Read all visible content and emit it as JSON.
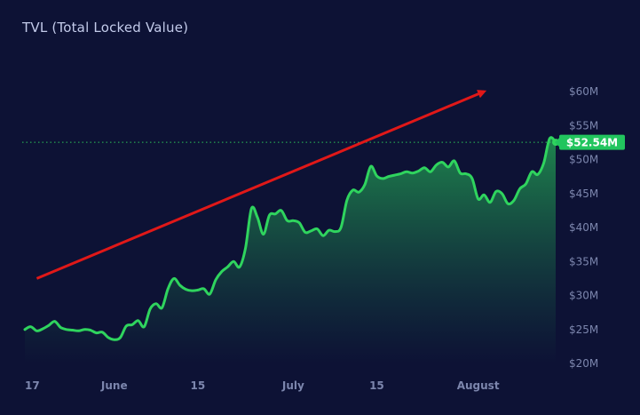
{
  "header": {
    "title": "TVL (Total Locked Value)"
  },
  "colors": {
    "background": "#0d1235",
    "line": "#2fd45e",
    "area_top": "#1f8b4f",
    "area_bottom": "#0d1235",
    "arrow": "#e01818",
    "badge": "#22c55e",
    "tick": "#7c86ad",
    "title": "#c3cbea"
  },
  "chart_data": {
    "type": "area",
    "title": "TVL (Total Locked Value)",
    "xlabel": "",
    "ylabel": "",
    "ylim": [
      20,
      60
    ],
    "y_unit": "$M",
    "grid": false,
    "y_ticks": [
      {
        "value": 60,
        "label": "$60M"
      },
      {
        "value": 55,
        "label": "$55M"
      },
      {
        "value": 50,
        "label": "$50M"
      },
      {
        "value": 45,
        "label": "$45M"
      },
      {
        "value": 40,
        "label": "$40M"
      },
      {
        "value": 35,
        "label": "$35M"
      },
      {
        "value": 30,
        "label": "$30M"
      },
      {
        "value": 25,
        "label": "$25M"
      },
      {
        "value": 20,
        "label": "$20M"
      }
    ],
    "x_ticks": [
      {
        "day": 0,
        "label": "17"
      },
      {
        "day": 15,
        "label": "June"
      },
      {
        "day": 29,
        "label": "15"
      },
      {
        "day": 45,
        "label": "July"
      },
      {
        "day": 59,
        "label": "15"
      },
      {
        "day": 76,
        "label": "August"
      }
    ],
    "x_range": [
      0,
      89
    ],
    "current_value": 52.54,
    "current_label": "$52.54M",
    "trend_arrow": {
      "from": {
        "day": 2,
        "value": 32.5
      },
      "to": {
        "day": 77,
        "value": 60.0
      }
    },
    "series": [
      {
        "name": "TVL",
        "points": [
          [
            0,
            25.0
          ],
          [
            1,
            25.4
          ],
          [
            2,
            24.8
          ],
          [
            3,
            25.1
          ],
          [
            4,
            25.6
          ],
          [
            5,
            26.2
          ],
          [
            6,
            25.3
          ],
          [
            7,
            25.0
          ],
          [
            8,
            24.9
          ],
          [
            9,
            24.8
          ],
          [
            10,
            25.0
          ],
          [
            11,
            24.9
          ],
          [
            12,
            24.5
          ],
          [
            13,
            24.6
          ],
          [
            14,
            23.8
          ],
          [
            15,
            23.5
          ],
          [
            16,
            23.8
          ],
          [
            17,
            25.5
          ],
          [
            18,
            25.7
          ],
          [
            19,
            26.3
          ],
          [
            20,
            25.4
          ],
          [
            21,
            28.0
          ],
          [
            22,
            28.8
          ],
          [
            23,
            28.2
          ],
          [
            24,
            31.0
          ],
          [
            25,
            32.5
          ],
          [
            26,
            31.5
          ],
          [
            27,
            30.9
          ],
          [
            28,
            30.7
          ],
          [
            29,
            30.8
          ],
          [
            30,
            31.0
          ],
          [
            31,
            30.2
          ],
          [
            32,
            32.3
          ],
          [
            33,
            33.5
          ],
          [
            34,
            34.2
          ],
          [
            35,
            35.0
          ],
          [
            36,
            34.2
          ],
          [
            37,
            37.0
          ],
          [
            38,
            42.8
          ],
          [
            39,
            41.5
          ],
          [
            40,
            39.0
          ],
          [
            41,
            41.8
          ],
          [
            42,
            42.0
          ],
          [
            43,
            42.5
          ],
          [
            44,
            41.0
          ],
          [
            45,
            41.0
          ],
          [
            46,
            40.7
          ],
          [
            47,
            39.3
          ],
          [
            48,
            39.5
          ],
          [
            49,
            39.8
          ],
          [
            50,
            38.8
          ],
          [
            51,
            39.6
          ],
          [
            52,
            39.4
          ],
          [
            53,
            40.0
          ],
          [
            54,
            44.0
          ],
          [
            55,
            45.5
          ],
          [
            56,
            45.2
          ],
          [
            57,
            46.3
          ],
          [
            58,
            49.0
          ],
          [
            59,
            47.6
          ],
          [
            60,
            47.2
          ],
          [
            61,
            47.5
          ],
          [
            62,
            47.7
          ],
          [
            63,
            47.9
          ],
          [
            64,
            48.2
          ],
          [
            65,
            48.0
          ],
          [
            66,
            48.3
          ],
          [
            67,
            48.8
          ],
          [
            68,
            48.2
          ],
          [
            69,
            49.2
          ],
          [
            70,
            49.6
          ],
          [
            71,
            48.9
          ],
          [
            72,
            49.8
          ],
          [
            73,
            48.0
          ],
          [
            74,
            47.9
          ],
          [
            75,
            47.2
          ],
          [
            76,
            44.2
          ],
          [
            77,
            44.8
          ],
          [
            78,
            43.7
          ],
          [
            79,
            45.3
          ],
          [
            80,
            45.0
          ],
          [
            81,
            43.5
          ],
          [
            82,
            44.0
          ],
          [
            83,
            45.7
          ],
          [
            84,
            46.4
          ],
          [
            85,
            48.2
          ],
          [
            86,
            47.8
          ],
          [
            87,
            49.5
          ],
          [
            88,
            53.1
          ],
          [
            89,
            52.54
          ]
        ]
      }
    ]
  }
}
